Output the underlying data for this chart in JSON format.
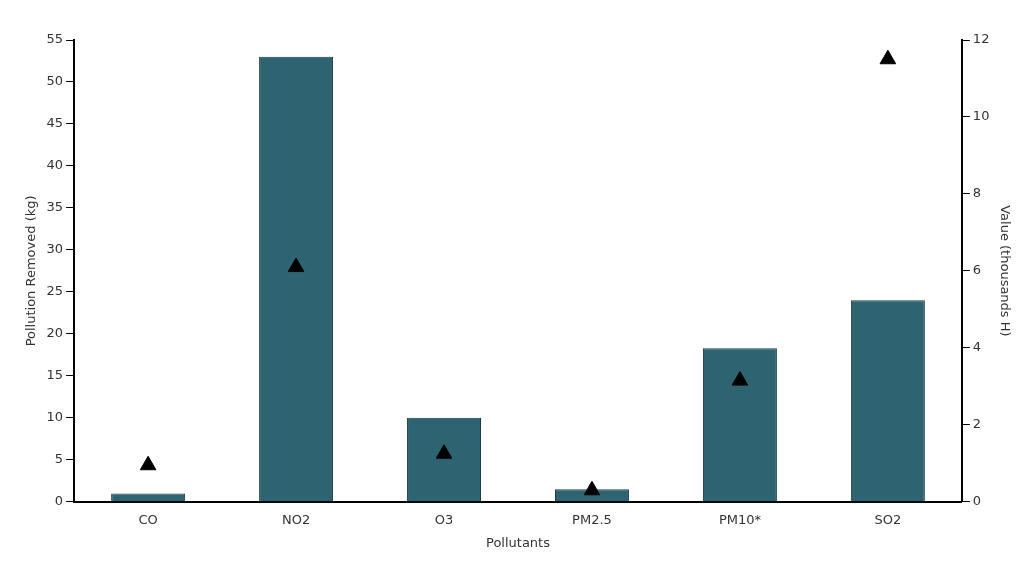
{
  "chart_data": {
    "type": "bar",
    "xlabel": "Pollutants",
    "ylabel": "Pollution Removed (kg)",
    "y2label": "Value (thousands H)",
    "categories": [
      "CO",
      "NO2",
      "O3",
      "PM2.5",
      "PM10*",
      "SO2"
    ],
    "series": [
      {
        "color": "#2e6472",
        "values": [
          1,
          53,
          10,
          1.5,
          18.3,
          24
        ]
      },
      {
        "type": "scatter",
        "axis": "y2",
        "color": "#000000",
        "marker": "triangle",
        "values": [
          0.95,
          6.1,
          1.25,
          0.3,
          3.15,
          11.5
        ]
      }
    ],
    "ylim": [
      0,
      55
    ],
    "yticks": [
      0,
      5,
      10,
      15,
      20,
      25,
      30,
      35,
      40,
      45,
      50,
      55
    ],
    "y2lim": [
      0,
      12
    ],
    "y2ticks": [
      0,
      2,
      4,
      6,
      8,
      10,
      12
    ],
    "grid": false,
    "legend": false
  }
}
